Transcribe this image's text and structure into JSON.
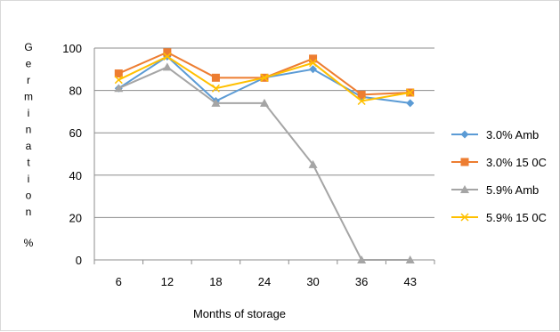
{
  "chart_data": {
    "type": "line",
    "title": "",
    "xlabel": "Months of storage",
    "ylabel": "Germination %",
    "categories": [
      "6",
      "12",
      "18",
      "24",
      "30",
      "36",
      "43"
    ],
    "y_ticks": [
      "0",
      "20",
      "40",
      "60",
      "80",
      "100"
    ],
    "ylim": [
      0,
      100
    ],
    "grid": "horizontal",
    "legend_position": "right",
    "series": [
      {
        "name": "3.0% Amb",
        "color": "#5b9bd5",
        "marker": "diamond",
        "values": [
          81,
          96,
          75,
          86,
          90,
          77,
          74
        ]
      },
      {
        "name": "3.0% 15 0C",
        "color": "#ed7d31",
        "marker": "square",
        "values": [
          88,
          98,
          86,
          86,
          95,
          78,
          79
        ]
      },
      {
        "name": "5.9% Amb",
        "color": "#a5a5a5",
        "marker": "triangle",
        "values": [
          81,
          91,
          74,
          74,
          45,
          0,
          0
        ]
      },
      {
        "name": "5.9% 15 0C",
        "color": "#ffc000",
        "marker": "x",
        "values": [
          85,
          96,
          81,
          86,
          93,
          75,
          79
        ]
      }
    ]
  }
}
